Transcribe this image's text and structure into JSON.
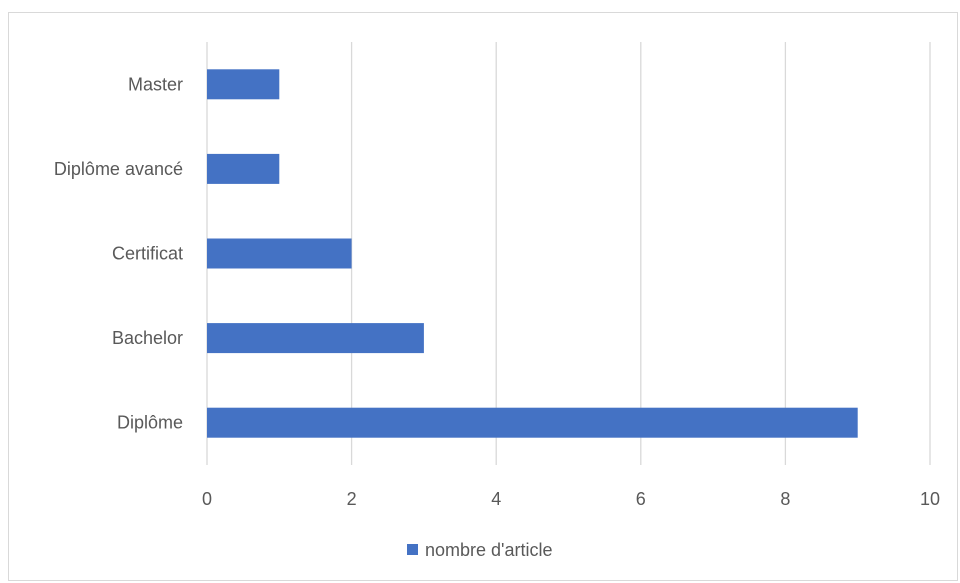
{
  "chart_data": {
    "type": "bar",
    "orientation": "horizontal",
    "title": "",
    "xlabel": "",
    "ylabel": "",
    "categories": [
      "Diplôme",
      "Bachelor",
      "Certificat",
      "Diplôme avancé",
      "Master"
    ],
    "series": [
      {
        "name": "nombre d'article",
        "values": [
          9,
          3,
          2,
          1,
          1
        ],
        "color": "#4472C4"
      }
    ],
    "xlim": [
      0,
      10
    ],
    "x_ticks": [
      "0",
      "2",
      "4",
      "6",
      "8",
      "10"
    ],
    "grid": "vertical",
    "legend_position": "bottom"
  }
}
